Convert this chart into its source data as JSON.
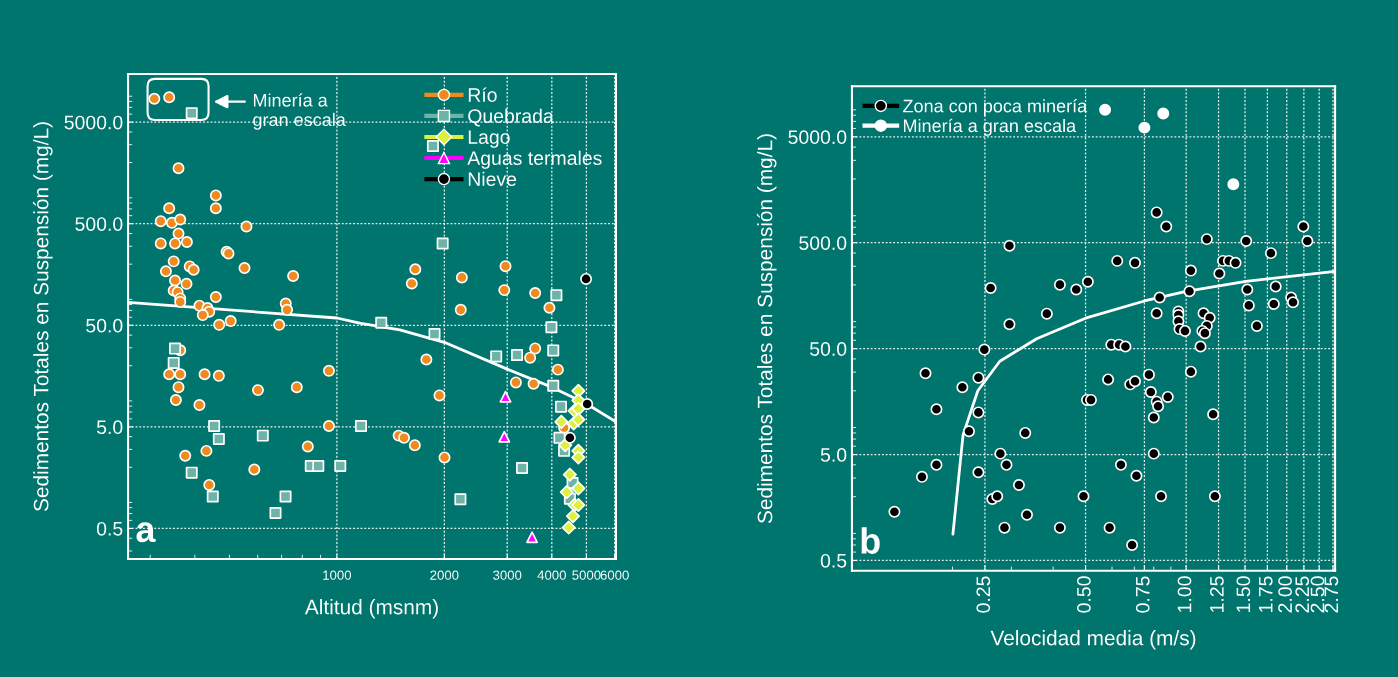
{
  "chart_data": [
    {
      "type": "scatter",
      "log": "xy",
      "xlabel": "Altitud (msnm)",
      "ylabel": "Sedimentos Totales en Suspensión (mg/L)",
      "xlim": [
        260,
        6050
      ],
      "xticks": [
        1000,
        2000,
        3000,
        4000,
        5000,
        6000
      ],
      "ylim": [
        0.25,
        14900
      ],
      "yticks": [
        {
          "value": 0.5,
          "label": "0.5"
        },
        {
          "value": 5,
          "label": "5.0"
        },
        {
          "value": 50,
          "label": "50.0"
        },
        {
          "value": 500,
          "label": "500.0"
        },
        {
          "value": 5000,
          "label": "5000.0"
        }
      ],
      "grid": true,
      "legend": "top right",
      "annotations": [
        "Minería a\ngran escala",
        "a"
      ],
      "series": [
        {
          "name": "Río",
          "color": "#ee8a1e",
          "marker": "circle",
          "x": [
            308,
            339,
            360,
            458,
            458,
            339,
            321,
            345,
            364,
            558,
            360,
            321,
            352,
            380,
            491,
            497,
            349,
            332,
            387,
            397,
            551,
            754,
            352,
            379,
            349,
            358,
            364,
            364,
            458,
            412,
            434,
            439,
            421,
            719,
            725,
            468,
            504,
            689,
            364,
            339,
            364,
            426,
            467,
            360,
            354,
            412,
            950,
            601,
            772,
            950,
            829,
            376,
            431,
            587,
            439,
            1658,
            1621,
            2239,
            2967,
            2944,
            3593,
            2223,
            3939,
            1781,
            3593,
            3478,
            4159,
            3173,
            3556,
            1938,
            1489,
            1542,
            1653,
            2002,
            4330
          ],
          "values": [
            8500,
            8800,
            1760,
            950,
            710,
            710,
            530,
            510,
            550,
            470,
            400,
            320,
            320,
            330,
            265,
            255,
            213,
            170,
            190,
            176,
            183,
            153,
            138,
            128,
            110,
            106,
            92,
            85,
            95,
            78,
            74,
            68,
            63,
            82,
            71,
            50.5,
            55,
            50.5,
            28.4,
            16.5,
            16.5,
            16.5,
            15.9,
            12.3,
            9.2,
            8.2,
            17.8,
            11.5,
            12.3,
            5.1,
            3.2,
            2.6,
            2.9,
            1.9,
            1.34,
            178,
            129,
            148,
            191,
            111,
            104,
            71,
            74.5,
            23,
            29.6,
            24,
            18.3,
            13.7,
            13.3,
            10.2,
            4.1,
            3.9,
            3.3,
            2.5,
            4.9
          ]
        },
        {
          "name": "Quebrada",
          "color": "#6fb3a8",
          "marker": "square",
          "x": [
            392,
            352,
            349,
            453,
            467,
            620,
            1168,
            392,
            845,
            887,
            1022,
            449,
            718,
            673,
            1858,
            1978,
            4120,
            1331,
            3989,
            1877,
            4037,
            2794,
            3196,
            4037,
            4244,
            4202,
            4330,
            3301,
            2218,
            4573,
            4494
          ],
          "values": [
            6130,
            29.5,
            21.3,
            5.1,
            3.8,
            4.1,
            5.1,
            1.77,
            2.06,
            2.06,
            2.06,
            1.03,
            1.03,
            0.71,
            2910,
            319,
            99,
            53,
            47.8,
            41,
            28.3,
            24.7,
            25.5,
            12.7,
            7.9,
            3.9,
            2.9,
            1.97,
            0.97,
            1.4,
            0.98
          ]
        },
        {
          "name": "Lago",
          "color": "#dcf03c",
          "marker": "diamond",
          "x": [
            4747,
            4747,
            4630,
            4747,
            4254,
            4607,
            4747,
            4361,
            4747,
            4747,
            4494,
            4747,
            4406,
            4630,
            4747,
            4585,
            4461
          ],
          "values": [
            11.3,
            9.1,
            7.2,
            7.5,
            5.6,
            5.4,
            5.9,
            3.3,
            2.9,
            2.5,
            1.69,
            1.24,
            1.14,
            0.85,
            0.85,
            0.66,
            0.51
          ]
        },
        {
          "name": "Aguas termales",
          "color": "#ff00ff",
          "marker": "triangle",
          "x": [
            2967,
            2944,
            3522
          ],
          "values": [
            9.9,
            4.0,
            0.41
          ]
        },
        {
          "name": "Nieve",
          "color": "#000000",
          "marker": "circle",
          "x": [
            4989,
            5025,
            4494
          ],
          "values": [
            143,
            8.4,
            3.9
          ]
        },
        {
          "type": "line",
          "color": "#ffffff",
          "x": [
            260,
            1000,
            1158,
            1500,
            2000,
            3000,
            4000,
            5000,
            6050
          ],
          "values": [
            84,
            59,
            52.6,
            45,
            34,
            18.5,
            12.3,
            8.45,
            5.6
          ]
        }
      ]
    },
    {
      "type": "scatter",
      "log": "xy",
      "xlabel": "Velocidad media (m/s)",
      "ylabel": "Sedimentos Totales en Suspensión (mg/L)",
      "xlim": [
        0.1,
        2.79
      ],
      "xticks": [
        {
          "value": 0.25,
          "label": "0.25"
        },
        {
          "value": 0.5,
          "label": "0.50"
        },
        {
          "value": 0.75,
          "label": "0.75"
        },
        {
          "value": 1,
          "label": "1.00"
        },
        {
          "value": 1.25,
          "label": "1.25"
        },
        {
          "value": 1.5,
          "label": "1.50"
        },
        {
          "value": 1.75,
          "label": "1.75"
        },
        {
          "value": 2,
          "label": "2.00"
        },
        {
          "value": 2.25,
          "label": "2.25"
        },
        {
          "value": 2.5,
          "label": "2.50"
        },
        {
          "value": 2.75,
          "label": "2.75"
        }
      ],
      "ylim": [
        0.4,
        15000
      ],
      "yticks": [
        {
          "value": 0.5,
          "label": "0.5"
        },
        {
          "value": 5,
          "label": "5.0"
        },
        {
          "value": 50,
          "label": "50.0"
        },
        {
          "value": 500,
          "label": "500.0"
        },
        {
          "value": 5000,
          "label": "5000.0"
        }
      ],
      "grid": true,
      "legend": "top left",
      "annotations": [
        "b"
      ],
      "series": [
        {
          "name": "Zona con poca minería",
          "color": "#000000",
          "marker": "circle",
          "x": [
            0.134,
            0.162,
            0.179,
            0.166,
            0.179,
            0.214,
            0.239,
            0.239,
            0.224,
            0.239,
            0.249,
            0.26,
            0.296,
            0.296,
            0.278,
            0.29,
            0.263,
            0.272,
            0.33,
            0.316,
            0.334,
            0.286,
            0.419,
            0.383,
            0.419,
            0.469,
            0.508,
            0.493,
            0.505,
            0.519,
            0.622,
            0.703,
            0.816,
            0.872,
            1.153,
            1.512,
            1.793,
            2.242,
            2.305,
            1.033,
            1.257,
            1.289,
            1.342,
            1.405,
            1.023,
            0.833,
            0.816,
            0.948,
            0.948,
            0.948,
            0.955,
            0.992,
            1.127,
            1.176,
            1.153,
            1.118,
            1.138,
            1.104,
            1.524,
            1.54,
            1.628,
            1.853,
            1.829,
            2.061,
            2.088,
            0.597,
            0.63,
            0.658,
            0.584,
            0.68,
            0.703,
            0.774,
            0.784,
            0.816,
            0.824,
            0.8,
            0.881,
            1.033,
            1.204,
            0.8,
            0.638,
            0.71,
            0.841,
            1.219,
            0.59,
            0.689
          ],
          "values": [
            1.44,
            3.08,
            4.0,
            29.3,
            13.4,
            21.6,
            26.6,
            12.5,
            8.3,
            3.4,
            49,
            187,
            468,
            85,
            5.1,
            4.0,
            1.9,
            2.02,
            8.0,
            2.58,
            1.35,
            1.02,
            1.02,
            107,
            201,
            181,
            214,
            2.02,
            16.4,
            16.4,
            337,
            323,
            967,
            712,
            541,
            520,
            399,
            712,
            520,
            273,
            256,
            337,
            337,
            323,
            174,
            152,
            108,
            112,
            104,
            90.6,
            76.5,
            73.5,
            108,
            98,
            82,
            73.5,
            70,
            52.4,
            181,
            128,
            82,
            193,
            132,
            152,
            137,
            54.5,
            54.5,
            52.4,
            25.6,
            23.0,
            24.6,
            28.4,
            19.5,
            15.8,
            14.3,
            11.2,
            17.5,
            30.3,
            12.0,
            5.1,
            4.0,
            3.15,
            2.02,
            2.02,
            1.02,
            0.7
          ]
        },
        {
          "name": "Minería a gran escala",
          "color": "#ffffff",
          "marker": "circle",
          "x": [
            0.572,
            0.75,
            0.854,
            1.384
          ],
          "values": [
            9000,
            6110,
            8300,
            1780
          ]
        },
        {
          "type": "line",
          "color": "#ffffff",
          "x": [
            0.2005,
            0.215,
            0.238,
            0.277,
            0.357,
            0.5,
            0.75,
            1.0,
            1.51,
            2.79
          ],
          "values": [
            0.885,
            7.66,
            20,
            38,
            62,
            97,
            141,
            174,
            216,
            269
          ]
        }
      ]
    }
  ]
}
